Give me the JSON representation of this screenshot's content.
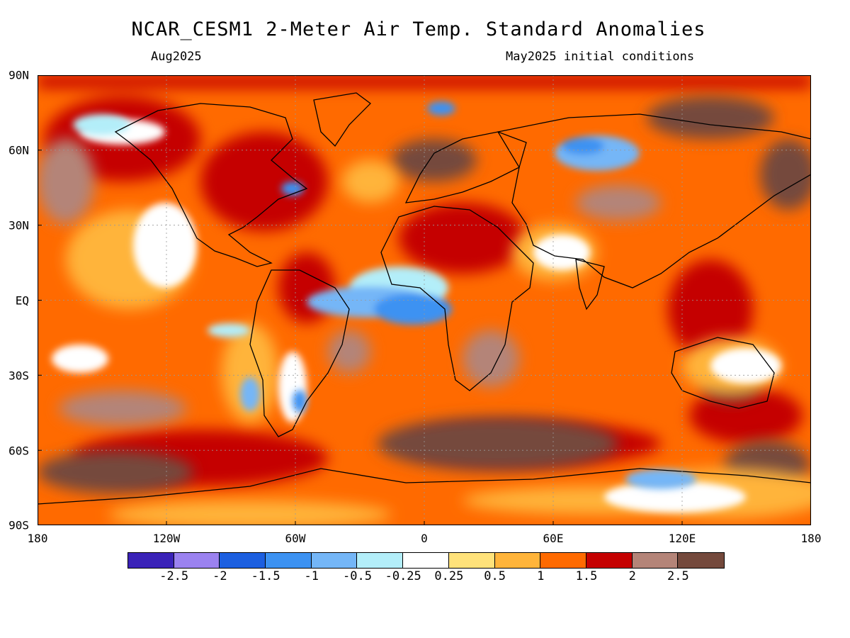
{
  "header": {
    "title": "NCAR_CESM1 2-Meter Air Temp. Standard Anomalies",
    "target_month": "Aug2025",
    "initial_conditions": "May2025 initial conditions"
  },
  "map": {
    "lat_ticks": [
      "90N",
      "60N",
      "30N",
      "EQ",
      "30S",
      "60S",
      "90S"
    ],
    "lon_ticks": [
      "180",
      "120W",
      "60W",
      "0",
      "60E",
      "120E",
      "180"
    ],
    "dominant_pattern": "widespread positive anomalies; negative anomalies over tropical South Atlantic, eastern Pacific, parts of Siberia and East Antarctica"
  },
  "colorbar": {
    "colors": [
      "#3a22b8",
      "#9b82f0",
      "#1c5fe0",
      "#3c92f2",
      "#74b6f7",
      "#b3eef9",
      "#ffffff",
      "#ffe27a",
      "#ffb43a",
      "#ff6a00",
      "#c50000",
      "#b48478",
      "#74493c"
    ],
    "labels": [
      "-2.5",
      "-2",
      "-1.5",
      "-1",
      "-0.5",
      "-0.25",
      "0.25",
      "0.5",
      "1",
      "1.5",
      "2",
      "2.5"
    ]
  }
}
